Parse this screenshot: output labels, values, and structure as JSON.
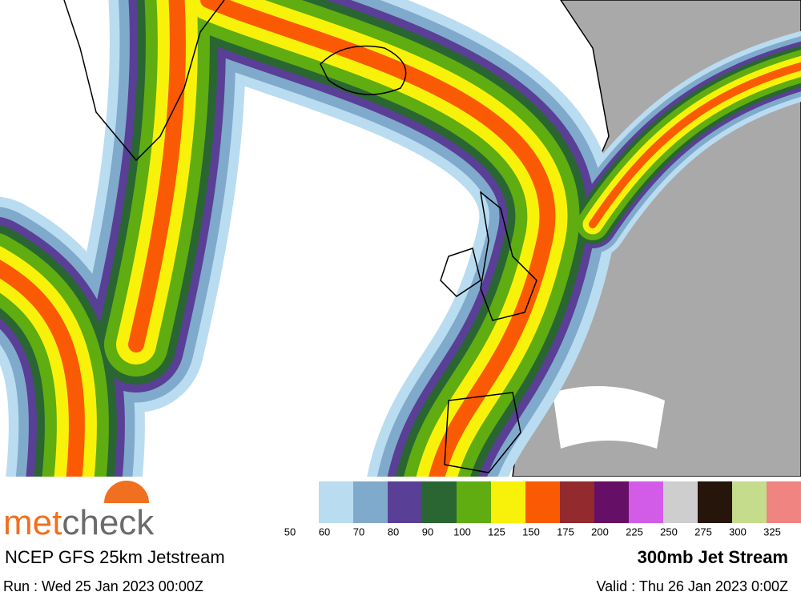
{
  "logo": {
    "first": "met",
    "second": "check"
  },
  "header": {
    "title": "NCEP GFS 25km Jetstream",
    "product": "300mb Jet Stream",
    "run": "Run : Wed 25 Jan 2023 00:00Z",
    "valid": "Valid : Thu 26 Jan 2023 0:00Z"
  },
  "legend": {
    "labels": [
      50,
      60,
      70,
      80,
      90,
      100,
      125,
      150,
      175,
      200,
      225,
      250,
      275,
      300,
      325
    ],
    "colors": [
      "#b9dcf0",
      "#80aacb",
      "#5a3f96",
      "#2a6632",
      "#5fad10",
      "#f8f20a",
      "#fb5a04",
      "#922a2e",
      "#660f66",
      "#d25ce8",
      "#cecece",
      "#26150a",
      "#c4dc8c",
      "#ef8480"
    ]
  }
}
